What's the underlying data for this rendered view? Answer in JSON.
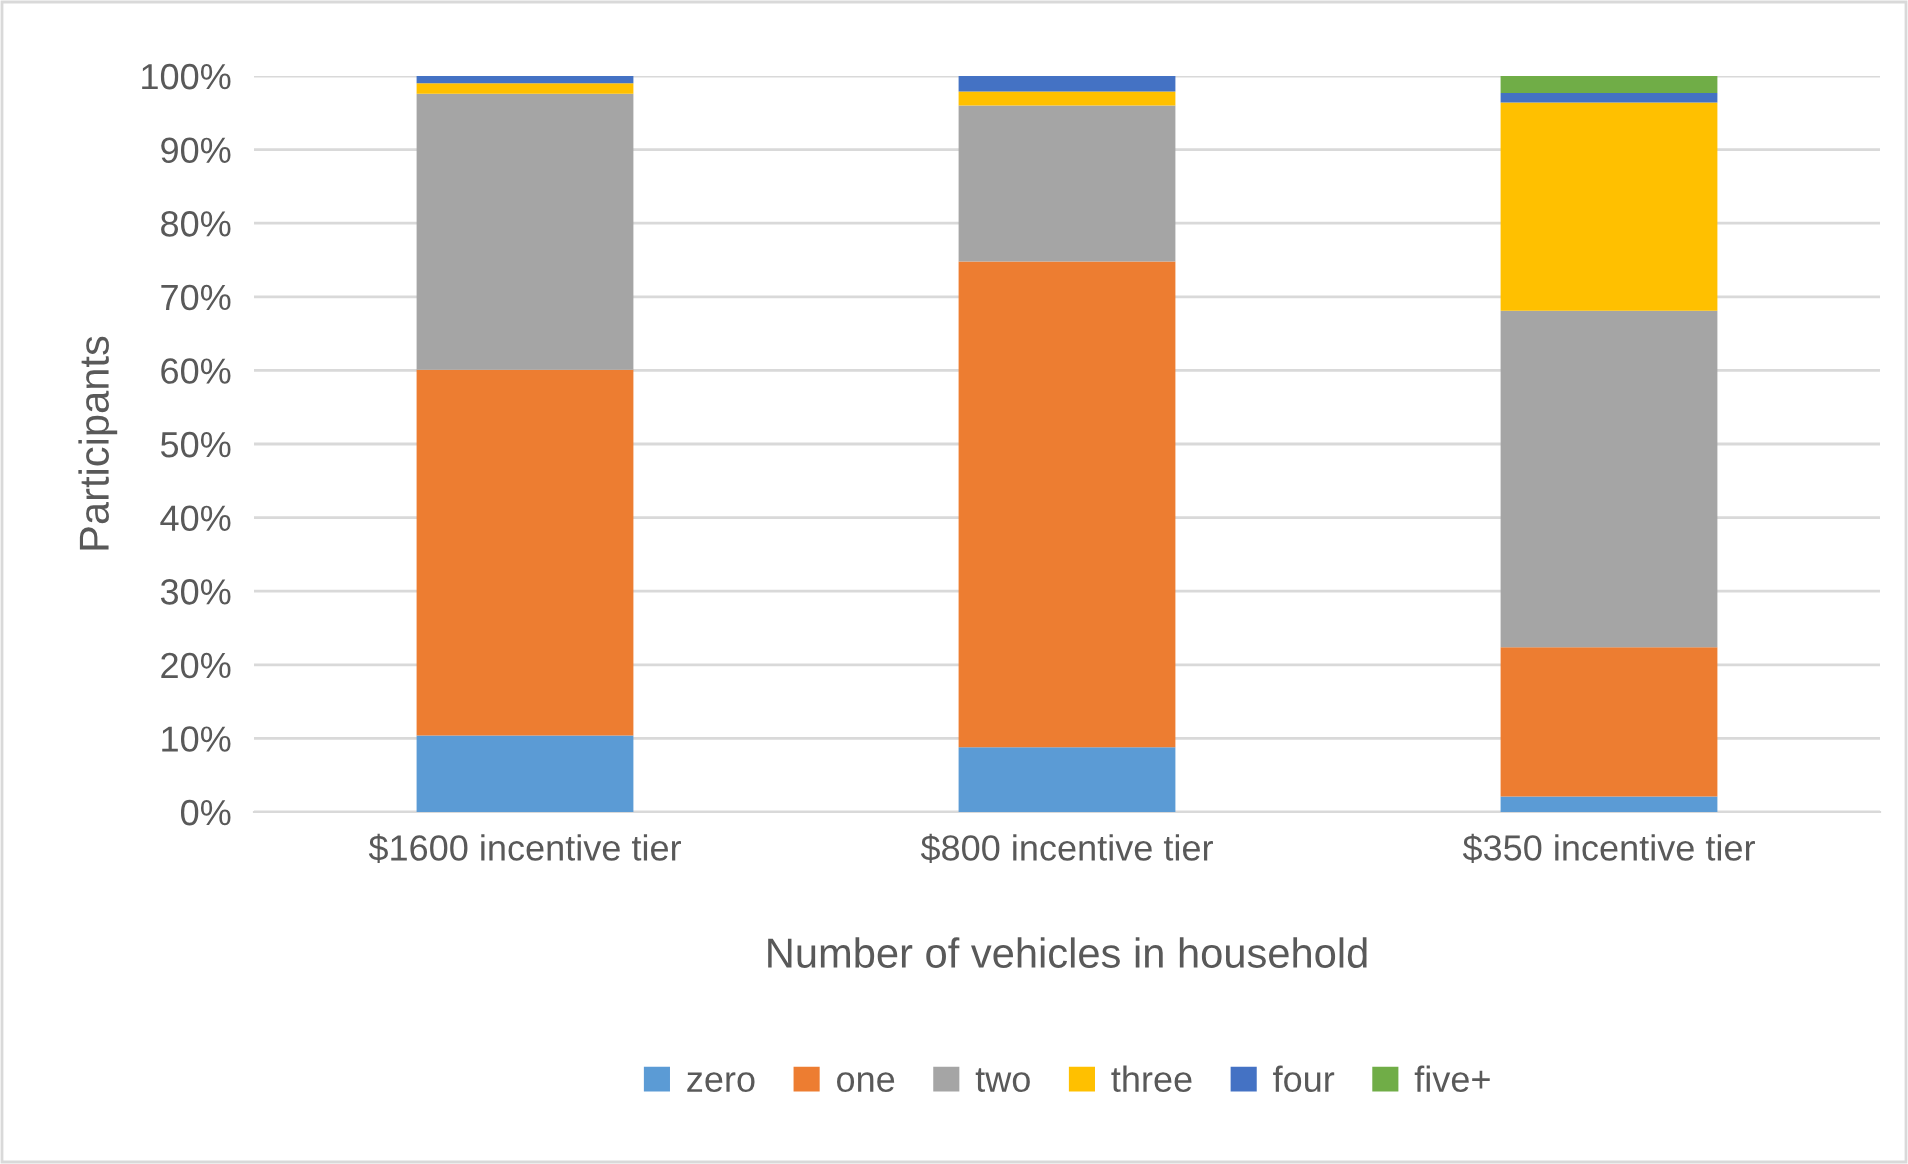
{
  "chart_data": {
    "type": "bar",
    "stacked": true,
    "xlabel": "Number of vehicles in household",
    "ylabel": "Participants",
    "categories": [
      "$1600 incentive tier",
      "$800 incentive tier",
      "$350 incentive tier"
    ],
    "series": [
      {
        "name": "zero",
        "color": "#5b9bd5",
        "values": [
          10.4,
          8.8,
          2.1
        ]
      },
      {
        "name": "one",
        "color": "#ed7d31",
        "values": [
          49.7,
          66.0,
          20.3
        ]
      },
      {
        "name": "two",
        "color": "#a5a5a5",
        "values": [
          37.5,
          21.2,
          45.7
        ]
      },
      {
        "name": "three",
        "color": "#ffc000",
        "values": [
          1.4,
          1.9,
          28.3
        ]
      },
      {
        "name": "four",
        "color": "#4472c4",
        "values": [
          1.0,
          2.1,
          1.3
        ]
      },
      {
        "name": "five+",
        "color": "#70ad47",
        "values": [
          null,
          null,
          2.3
        ]
      }
    ],
    "ylim": [
      0,
      100
    ],
    "yticks": [
      {
        "value": 0,
        "label": "0%"
      },
      {
        "value": 10,
        "label": "10%"
      },
      {
        "value": 20,
        "label": "20%"
      },
      {
        "value": 30,
        "label": "30%"
      },
      {
        "value": 40,
        "label": "40%"
      },
      {
        "value": 50,
        "label": "50%"
      },
      {
        "value": 60,
        "label": "60%"
      },
      {
        "value": 70,
        "label": "70%"
      },
      {
        "value": 80,
        "label": "80%"
      },
      {
        "value": 90,
        "label": "90%"
      },
      {
        "value": 100,
        "label": "100%"
      }
    ],
    "grid": "y",
    "legend": "bottom"
  }
}
